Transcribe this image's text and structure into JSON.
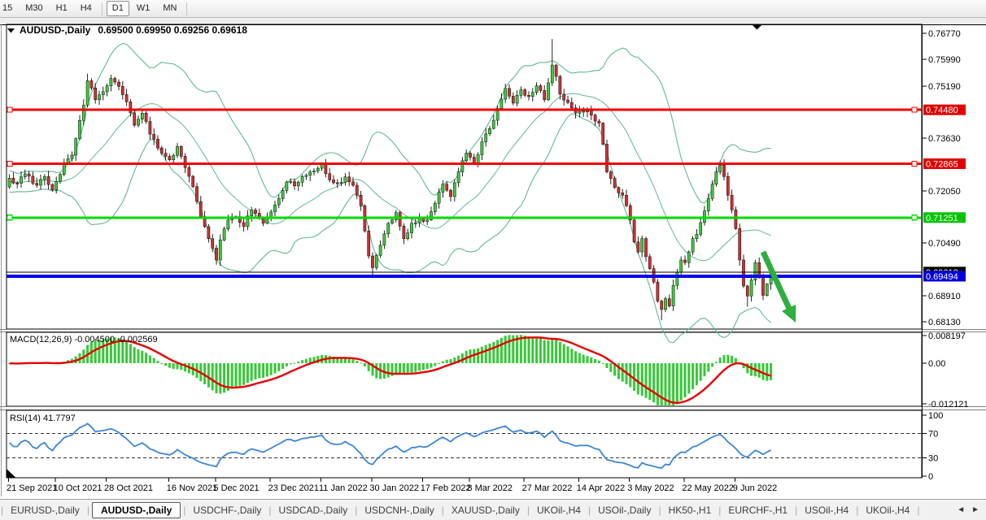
{
  "toolbar": {
    "timeframes": [
      {
        "label": "15",
        "active": false
      },
      {
        "label": "M30",
        "active": false
      },
      {
        "label": "H1",
        "active": false
      },
      {
        "label": "H4",
        "active": false
      },
      {
        "label": "D1",
        "active": true
      },
      {
        "label": "W1",
        "active": false
      },
      {
        "label": "MN",
        "active": false
      }
    ]
  },
  "chart": {
    "title_symbol": "AUDUSD-,Daily",
    "title_ohlc": "0.69500 0.69950 0.69256 0.69618"
  },
  "chart_data": {
    "type": "candlestick",
    "symbol": "AUDUSD-",
    "timeframe": "Daily",
    "ohlc_display": {
      "open": "0.69500",
      "high": "0.69950",
      "low": "0.69256",
      "close": "0.69618"
    },
    "ylim": [
      0.6791,
      0.7704
    ],
    "y_axis": {
      "ticks": [
        0.7677,
        0.7599,
        0.7519,
        0.7363,
        0.7205,
        0.7049,
        0.6891,
        0.6813
      ]
    },
    "h_lines": [
      {
        "price": 0.7448,
        "label": "0.74480",
        "color": "#f00000",
        "label_bg": "#e00000",
        "width": 3,
        "handles": true
      },
      {
        "price": 0.72865,
        "label": "0.72865",
        "color": "#f00000",
        "label_bg": "#e00000",
        "width": 3,
        "handles": true
      },
      {
        "price": 0.71251,
        "label": "0.71251",
        "color": "#00d800",
        "label_bg": "#00c400",
        "width": 3,
        "handles": true
      },
      {
        "price": 0.69494,
        "label": "0.69494",
        "color": "#0000f0",
        "label_bg": "#0000dd",
        "width": 4,
        "handles": false
      }
    ],
    "current_price": {
      "price": 0.69618,
      "label": "0.69618",
      "label_bg": "#000000"
    },
    "x_axis": {
      "labels": [
        {
          "text": "21 Sep 2021",
          "i": 0
        },
        {
          "text": "10 Oct 2021",
          "i": 12
        },
        {
          "text": "28 Oct 2021",
          "i": 25
        },
        {
          "text": "16 Nov 2021",
          "i": 41
        },
        {
          "text": "5 Dec 2021",
          "i": 53
        },
        {
          "text": "23 Dec 2021",
          "i": 67
        },
        {
          "text": "11 Jan 2022",
          "i": 80
        },
        {
          "text": "30 Jan 2022",
          "i": 93
        },
        {
          "text": "17 Feb 2022",
          "i": 106
        },
        {
          "text": "8 Mar 2022",
          "i": 118
        },
        {
          "text": "27 Mar 2022",
          "i": 132
        },
        {
          "text": "14 Apr 2022",
          "i": 146
        },
        {
          "text": "3 May 2022",
          "i": 159
        },
        {
          "text": "22 May 2022",
          "i": 173
        },
        {
          "text": "9 Jun 2022",
          "i": 186
        }
      ]
    },
    "candle_count": 196,
    "anchors": [
      [
        0,
        0.7243
      ],
      [
        2,
        0.7228
      ],
      [
        4,
        0.7256
      ],
      [
        7,
        0.7222
      ],
      [
        9,
        0.7248
      ],
      [
        11,
        0.7208
      ],
      [
        14,
        0.7288
      ],
      [
        16,
        0.7312
      ],
      [
        19,
        0.7462
      ],
      [
        20,
        0.7535
      ],
      [
        22,
        0.7478
      ],
      [
        24,
        0.7502
      ],
      [
        26,
        0.7542
      ],
      [
        28,
        0.7518
      ],
      [
        30,
        0.7472
      ],
      [
        32,
        0.7402
      ],
      [
        34,
        0.7438
      ],
      [
        36,
        0.7375
      ],
      [
        39,
        0.7318
      ],
      [
        41,
        0.7298
      ],
      [
        43,
        0.7338
      ],
      [
        45,
        0.7275
      ],
      [
        47,
        0.7218
      ],
      [
        49,
        0.7128
      ],
      [
        51,
        0.7062
      ],
      [
        53,
        0.6998
      ],
      [
        54,
        0.7058
      ],
      [
        56,
        0.7118
      ],
      [
        58,
        0.7128
      ],
      [
        60,
        0.7098
      ],
      [
        62,
        0.7148
      ],
      [
        65,
        0.7108
      ],
      [
        67,
        0.7142
      ],
      [
        69,
        0.7182
      ],
      [
        71,
        0.7232
      ],
      [
        73,
        0.722
      ],
      [
        75,
        0.7248
      ],
      [
        77,
        0.7262
      ],
      [
        80,
        0.7284
      ],
      [
        82,
        0.7238
      ],
      [
        84,
        0.7228
      ],
      [
        86,
        0.7247
      ],
      [
        88,
        0.7222
      ],
      [
        90,
        0.716
      ],
      [
        91,
        0.7085
      ],
      [
        92,
        0.701
      ],
      [
        93,
        0.6975
      ],
      [
        95,
        0.7042
      ],
      [
        97,
        0.7108
      ],
      [
        99,
        0.714
      ],
      [
        101,
        0.7062
      ],
      [
        103,
        0.7108
      ],
      [
        105,
        0.7122
      ],
      [
        107,
        0.7118
      ],
      [
        109,
        0.7168
      ],
      [
        111,
        0.7225
      ],
      [
        113,
        0.7188
      ],
      [
        115,
        0.7262
      ],
      [
        117,
        0.7318
      ],
      [
        119,
        0.7288
      ],
      [
        121,
        0.7352
      ],
      [
        123,
        0.7392
      ],
      [
        125,
        0.7452
      ],
      [
        127,
        0.7512
      ],
      [
        129,
        0.7468
      ],
      [
        131,
        0.7508
      ],
      [
        133,
        0.7488
      ],
      [
        135,
        0.752
      ],
      [
        137,
        0.7478
      ],
      [
        139,
        0.7582
      ],
      [
        140,
        0.7548
      ],
      [
        141,
        0.7495
      ],
      [
        143,
        0.747
      ],
      [
        145,
        0.7438
      ],
      [
        147,
        0.7444
      ],
      [
        149,
        0.7432
      ],
      [
        151,
        0.7408
      ],
      [
        152,
        0.7345
      ],
      [
        153,
        0.7262
      ],
      [
        155,
        0.7215
      ],
      [
        157,
        0.7192
      ],
      [
        159,
        0.7118
      ],
      [
        160,
        0.7052
      ],
      [
        161,
        0.7022
      ],
      [
        162,
        0.7062
      ],
      [
        163,
        0.7008
      ],
      [
        164,
        0.6972
      ],
      [
        165,
        0.6932
      ],
      [
        166,
        0.6875
      ],
      [
        167,
        0.685
      ],
      [
        168,
        0.6882
      ],
      [
        169,
        0.686
      ],
      [
        170,
        0.6922
      ],
      [
        171,
        0.6962
      ],
      [
        172,
        0.6998
      ],
      [
        173,
        0.699
      ],
      [
        174,
        0.7022
      ],
      [
        175,
        0.7062
      ],
      [
        176,
        0.7075
      ],
      [
        177,
        0.711
      ],
      [
        178,
        0.7145
      ],
      [
        179,
        0.7182
      ],
      [
        180,
        0.7225
      ],
      [
        181,
        0.7262
      ],
      [
        182,
        0.7282
      ],
      [
        183,
        0.7248
      ],
      [
        184,
        0.7192
      ],
      [
        185,
        0.7148
      ],
      [
        186,
        0.7092
      ],
      [
        187,
        0.6998
      ],
      [
        188,
        0.692
      ],
      [
        189,
        0.689
      ],
      [
        190,
        0.6938
      ],
      [
        191,
        0.699
      ],
      [
        192,
        0.6952
      ],
      [
        193,
        0.6892
      ],
      [
        194,
        0.6926
      ],
      [
        195,
        0.6962
      ]
    ],
    "spikes": [
      [
        20,
        0.7556,
        "high"
      ],
      [
        53,
        0.6984,
        "low"
      ],
      [
        93,
        0.6952,
        "low"
      ],
      [
        139,
        0.766,
        "high"
      ],
      [
        167,
        0.6817,
        "low"
      ],
      [
        189,
        0.6858,
        "low"
      ]
    ],
    "bollinger": {
      "period": 20,
      "deviations": 2,
      "color": "#5fb98e"
    },
    "candle_colors": {
      "up": "#3bcb3b",
      "down": "#d13030",
      "wick": "#0a0a0a"
    },
    "indicators": {
      "macd": {
        "label_text": "MACD(12,26,9) -0.004500 -0.002569",
        "fast": 12,
        "slow": 26,
        "signal": 9,
        "main_value": "-0.004500",
        "signal_value": "-0.002569",
        "scale_max": "0.008197",
        "scale_zero": "0.00",
        "scale_min": "-0.012121",
        "max": 0.008197,
        "min": -0.012121,
        "histogram_color": "#36c936",
        "signal_color": "#e60000"
      },
      "rsi": {
        "label_text": "RSI(14) 41.7797",
        "period": 14,
        "value": "41.7797",
        "levels": [
          100,
          70,
          30,
          0
        ],
        "dashed_levels": [
          70,
          30
        ],
        "line_color": "#3d86d6"
      }
    },
    "trend_arrow": {
      "x1": 938,
      "y1": 310,
      "x2": 978,
      "y2": 397,
      "color": "#2eae3e"
    }
  },
  "tabs": {
    "items": [
      {
        "label": "EURUSD-,Daily",
        "active": false
      },
      {
        "label": "AUDUSD-,Daily",
        "active": true
      },
      {
        "label": "USDCHF-,Daily",
        "active": false
      },
      {
        "label": "USDCAD-,Daily",
        "active": false
      },
      {
        "label": "USDCNH-,Daily",
        "active": false
      },
      {
        "label": "XAUUSD-,Daily",
        "active": false
      },
      {
        "label": "UKOil-,H4",
        "active": false
      },
      {
        "label": "USOil-,Daily",
        "active": false
      },
      {
        "label": "HK50-,H1",
        "active": false
      },
      {
        "label": "EURCHF-,H1",
        "active": false
      },
      {
        "label": "USOil-,H4",
        "active": false
      },
      {
        "label": "UKOil-,H4",
        "active": false
      }
    ],
    "scroll_left": "◄",
    "scroll_right": "►"
  }
}
